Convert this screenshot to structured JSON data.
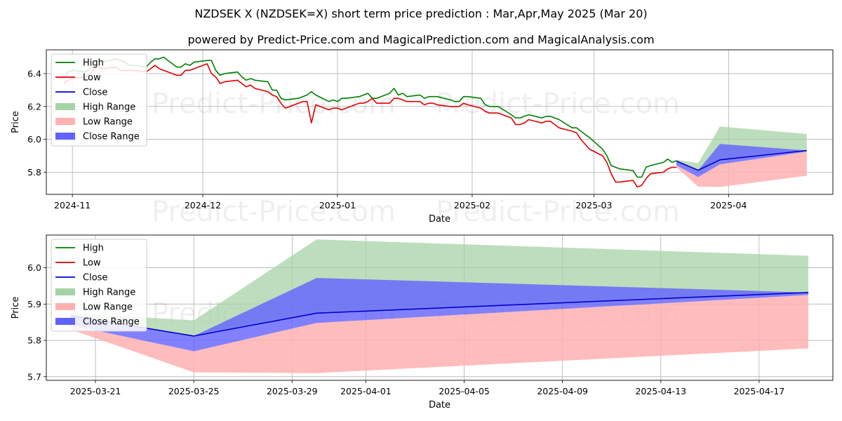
{
  "chart_data": [
    {
      "type": "line",
      "title_line1": "NZDSEK X (NZDSEK=X) short term price prediction : Mar,Apr,May 2025 (Mar 20)",
      "title_line2": "powered by Predict-Price.com and MagicalPrediction.com and MagicalAnalysis.com",
      "watermark": "Predict-Price.com",
      "xlabel": "Date",
      "ylabel": "Price",
      "xlim": [
        "2024-10-26",
        "2025-04-25"
      ],
      "ylim": [
        5.665,
        6.545
      ],
      "xticks": [
        "2024-11",
        "2024-12",
        "2025-01",
        "2025-02",
        "2025-03",
        "2025-04"
      ],
      "xtick_dates": [
        "2024-11-01",
        "2024-12-01",
        "2025-01-01",
        "2025-02-01",
        "2025-03-01",
        "2025-04-01"
      ],
      "yticks": [
        5.8,
        6.0,
        6.2,
        6.4
      ],
      "ytick_labels": [
        "5.8",
        "6.0",
        "6.2",
        "6.4"
      ],
      "legend": [
        "High",
        "Low",
        "Close",
        "High Range",
        "Low Range",
        "Close Range"
      ],
      "colors": {
        "high": "#008000",
        "low": "#e00000",
        "close": "#0000cc",
        "high_range": "#a5d3a5",
        "low_range": "#ffb0b0",
        "close_range": "#6262ff"
      },
      "series": [
        {
          "name": "High",
          "x": [
            "2024-10-30",
            "2024-10-31",
            "2024-11-01",
            "2024-11-04",
            "2024-11-05",
            "2024-11-06",
            "2024-11-07",
            "2024-11-08",
            "2024-11-11",
            "2024-11-12",
            "2024-11-13",
            "2024-11-14",
            "2024-11-15",
            "2024-11-18",
            "2024-11-19",
            "2024-11-20",
            "2024-11-21",
            "2024-11-22",
            "2024-11-25",
            "2024-11-26",
            "2024-11-27",
            "2024-11-28",
            "2024-11-29",
            "2024-12-02",
            "2024-12-03",
            "2024-12-04",
            "2024-12-05",
            "2024-12-06",
            "2024-12-09",
            "2024-12-10",
            "2024-12-11",
            "2024-12-12",
            "2024-12-13",
            "2024-12-16",
            "2024-12-17",
            "2024-12-18",
            "2024-12-19",
            "2024-12-20",
            "2024-12-23",
            "2024-12-24",
            "2024-12-25",
            "2024-12-26",
            "2024-12-27",
            "2024-12-30",
            "2024-12-31",
            "2025-01-01",
            "2025-01-02",
            "2025-01-03",
            "2025-01-06",
            "2025-01-07",
            "2025-01-08",
            "2025-01-09",
            "2025-01-10",
            "2025-01-13",
            "2025-01-14",
            "2025-01-15",
            "2025-01-16",
            "2025-01-17",
            "2025-01-20",
            "2025-01-21",
            "2025-01-22",
            "2025-01-23",
            "2025-01-24",
            "2025-01-27",
            "2025-01-28",
            "2025-01-29",
            "2025-01-30",
            "2025-01-31",
            "2025-02-03",
            "2025-02-04",
            "2025-02-05",
            "2025-02-06",
            "2025-02-07",
            "2025-02-10",
            "2025-02-11",
            "2025-02-12",
            "2025-02-13",
            "2025-02-14",
            "2025-02-17",
            "2025-02-18",
            "2025-02-19",
            "2025-02-20",
            "2025-02-21",
            "2025-02-24",
            "2025-02-25",
            "2025-02-26",
            "2025-02-27",
            "2025-02-28",
            "2025-03-03",
            "2025-03-04",
            "2025-03-05",
            "2025-03-06",
            "2025-03-07",
            "2025-03-10",
            "2025-03-11",
            "2025-03-12",
            "2025-03-13",
            "2025-03-14",
            "2025-03-17",
            "2025-03-18",
            "2025-03-19",
            "2025-03-20"
          ],
          "values": [
            6.37,
            6.41,
            6.42,
            6.41,
            6.43,
            6.47,
            6.49,
            6.47,
            6.49,
            6.48,
            6.47,
            6.45,
            6.45,
            6.44,
            6.47,
            6.49,
            6.49,
            6.5,
            6.44,
            6.44,
            6.46,
            6.45,
            6.47,
            6.48,
            6.48,
            6.42,
            6.39,
            6.4,
            6.41,
            6.38,
            6.36,
            6.37,
            6.36,
            6.35,
            6.3,
            6.3,
            6.25,
            6.24,
            6.25,
            6.26,
            6.27,
            6.29,
            6.27,
            6.23,
            6.24,
            6.23,
            6.25,
            6.25,
            6.26,
            6.27,
            6.28,
            6.25,
            6.25,
            6.28,
            6.31,
            6.27,
            6.28,
            6.26,
            6.27,
            6.25,
            6.26,
            6.26,
            6.26,
            6.24,
            6.23,
            6.23,
            6.26,
            6.26,
            6.25,
            6.21,
            6.2,
            6.2,
            6.2,
            6.15,
            6.13,
            6.13,
            6.14,
            6.15,
            6.13,
            6.14,
            6.14,
            6.13,
            6.12,
            6.07,
            6.07,
            6.05,
            6.03,
            6.01,
            5.94,
            5.9,
            5.84,
            5.83,
            5.82,
            5.81,
            5.77,
            5.77,
            5.83,
            5.84,
            5.86,
            5.88,
            5.86,
            5.87
          ]
        },
        {
          "name": "Low",
          "x": [
            "2024-10-30",
            "2024-10-31",
            "2024-11-01",
            "2024-11-04",
            "2024-11-05",
            "2024-11-06",
            "2024-11-07",
            "2024-11-08",
            "2024-11-11",
            "2024-11-12",
            "2024-11-13",
            "2024-11-14",
            "2024-11-15",
            "2024-11-18",
            "2024-11-19",
            "2024-11-20",
            "2024-11-21",
            "2024-11-22",
            "2024-11-25",
            "2024-11-26",
            "2024-11-27",
            "2024-11-28",
            "2024-11-29",
            "2024-12-02",
            "2024-12-03",
            "2024-12-04",
            "2024-12-05",
            "2024-12-06",
            "2024-12-09",
            "2024-12-10",
            "2024-12-11",
            "2024-12-12",
            "2024-12-13",
            "2024-12-16",
            "2024-12-17",
            "2024-12-18",
            "2024-12-19",
            "2024-12-20",
            "2024-12-23",
            "2024-12-24",
            "2024-12-25",
            "2024-12-26",
            "2024-12-27",
            "2024-12-30",
            "2024-12-31",
            "2025-01-01",
            "2025-01-02",
            "2025-01-03",
            "2025-01-06",
            "2025-01-07",
            "2025-01-08",
            "2025-01-09",
            "2025-01-10",
            "2025-01-13",
            "2025-01-14",
            "2025-01-15",
            "2025-01-16",
            "2025-01-17",
            "2025-01-20",
            "2025-01-21",
            "2025-01-22",
            "2025-01-23",
            "2025-01-24",
            "2025-01-27",
            "2025-01-28",
            "2025-01-29",
            "2025-01-30",
            "2025-01-31",
            "2025-02-03",
            "2025-02-04",
            "2025-02-05",
            "2025-02-06",
            "2025-02-07",
            "2025-02-10",
            "2025-02-11",
            "2025-02-12",
            "2025-02-13",
            "2025-02-14",
            "2025-02-17",
            "2025-02-18",
            "2025-02-19",
            "2025-02-20",
            "2025-02-21",
            "2025-02-24",
            "2025-02-25",
            "2025-02-26",
            "2025-02-27",
            "2025-02-28",
            "2025-03-03",
            "2025-03-04",
            "2025-03-05",
            "2025-03-06",
            "2025-03-07",
            "2025-03-10",
            "2025-03-11",
            "2025-03-12",
            "2025-03-13",
            "2025-03-14",
            "2025-03-17",
            "2025-03-18",
            "2025-03-19",
            "2025-03-20"
          ],
          "values": [
            6.34,
            6.36,
            6.37,
            6.38,
            6.4,
            6.43,
            6.44,
            6.43,
            6.44,
            6.42,
            6.42,
            6.42,
            6.42,
            6.41,
            6.43,
            6.45,
            6.43,
            6.42,
            6.39,
            6.39,
            6.42,
            6.42,
            6.43,
            6.46,
            6.4,
            6.38,
            6.34,
            6.35,
            6.36,
            6.34,
            6.32,
            6.33,
            6.31,
            6.29,
            6.27,
            6.26,
            6.22,
            6.19,
            6.22,
            6.23,
            6.23,
            6.1,
            6.21,
            6.18,
            6.19,
            6.19,
            6.18,
            6.19,
            6.22,
            6.22,
            6.23,
            6.25,
            6.22,
            6.22,
            6.25,
            6.25,
            6.24,
            6.23,
            6.23,
            6.21,
            6.22,
            6.22,
            6.21,
            6.2,
            6.2,
            6.2,
            6.22,
            6.21,
            6.19,
            6.17,
            6.16,
            6.16,
            6.16,
            6.13,
            6.09,
            6.09,
            6.1,
            6.12,
            6.1,
            6.11,
            6.11,
            6.09,
            6.07,
            6.05,
            6.04,
            6.0,
            5.97,
            5.94,
            5.9,
            5.86,
            5.79,
            5.74,
            5.74,
            5.75,
            5.71,
            5.72,
            5.76,
            5.79,
            5.8,
            5.82,
            5.83,
            5.83
          ]
        },
        {
          "name": "Close",
          "x": [
            "2025-03-20",
            "2025-03-25",
            "2025-03-30",
            "2025-04-19"
          ],
          "values": [
            5.868,
            5.812,
            5.875,
            5.932
          ]
        }
      ],
      "ranges": [
        {
          "name": "High Range",
          "x": [
            "2025-03-20",
            "2025-03-25",
            "2025-03-30",
            "2025-04-19"
          ],
          "upper": [
            5.875,
            5.855,
            6.078,
            6.033
          ],
          "lower": [
            5.868,
            5.812,
            5.875,
            5.932
          ]
        },
        {
          "name": "Low Range",
          "x": [
            "2025-03-20",
            "2025-03-25",
            "2025-03-30",
            "2025-04-19"
          ],
          "upper": [
            5.842,
            5.77,
            5.848,
            5.925
          ],
          "lower": [
            5.83,
            5.712,
            5.71,
            5.778
          ]
        },
        {
          "name": "Close Range",
          "x": [
            "2025-03-20",
            "2025-03-25",
            "2025-03-30",
            "2025-04-19"
          ],
          "upper": [
            5.868,
            5.812,
            5.972,
            5.932
          ],
          "lower": [
            5.842,
            5.77,
            5.848,
            5.925
          ]
        }
      ]
    },
    {
      "type": "line",
      "watermark": "Predict-Price.com",
      "xlabel": "Date",
      "ylabel": "Price",
      "xlim": [
        "2025-03-19",
        "2025-04-20"
      ],
      "ylim": [
        5.69,
        6.09
      ],
      "xticks": [
        "2025-03-21",
        "2025-03-25",
        "2025-03-29",
        "2025-04-01",
        "2025-04-05",
        "2025-04-09",
        "2025-04-13",
        "2025-04-17"
      ],
      "yticks": [
        5.7,
        5.8,
        5.9,
        6.0
      ],
      "ytick_labels": [
        "5.7",
        "5.8",
        "5.9",
        "6.0"
      ],
      "legend": [
        "High",
        "Low",
        "Close",
        "High Range",
        "Low Range",
        "Close Range"
      ],
      "series": [
        {
          "name": "Close",
          "x": [
            "2025-03-20",
            "2025-03-25",
            "2025-03-30",
            "2025-04-19"
          ],
          "values": [
            5.868,
            5.812,
            5.875,
            5.932
          ]
        }
      ],
      "ranges": [
        {
          "name": "High Range",
          "x": [
            "2025-03-20",
            "2025-03-25",
            "2025-03-30",
            "2025-04-19"
          ],
          "upper": [
            5.875,
            5.855,
            6.078,
            6.033
          ],
          "lower": [
            5.868,
            5.812,
            5.875,
            5.932
          ]
        },
        {
          "name": "Low Range",
          "x": [
            "2025-03-20",
            "2025-03-25",
            "2025-03-30",
            "2025-04-19"
          ],
          "upper": [
            5.842,
            5.77,
            5.848,
            5.925
          ],
          "lower": [
            5.83,
            5.712,
            5.71,
            5.778
          ]
        },
        {
          "name": "Close Range",
          "x": [
            "2025-03-20",
            "2025-03-25",
            "2025-03-30",
            "2025-04-19"
          ],
          "upper": [
            5.868,
            5.812,
            5.972,
            5.932
          ],
          "lower": [
            5.842,
            5.77,
            5.848,
            5.925
          ]
        }
      ]
    }
  ]
}
